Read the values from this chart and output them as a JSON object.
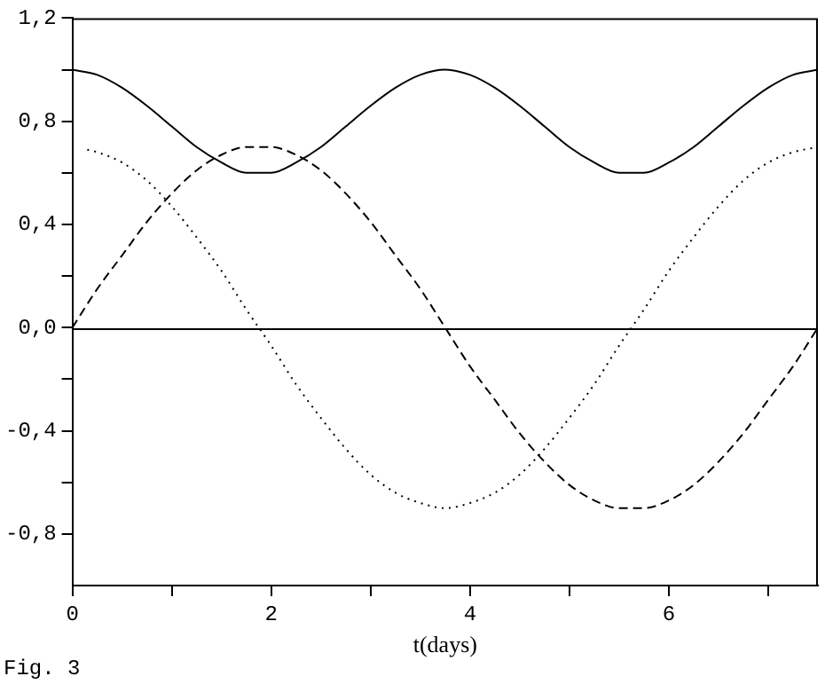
{
  "chart_data": {
    "type": "line",
    "xlabel": "t(days)",
    "annotations": [
      "Fig. 3"
    ],
    "xlim": [
      0,
      7.5
    ],
    "ylim": [
      -1,
      1.2
    ],
    "xticks": [
      0,
      {
        "value": 1,
        "label": null
      },
      2,
      {
        "value": 3,
        "label": null
      },
      4,
      {
        "value": 5,
        "label": null
      },
      6,
      {
        "value": 7,
        "label": null
      }
    ],
    "yticks": [
      {
        "value": -0.8,
        "label": "-0,8"
      },
      {
        "value": -0.6,
        "label": null
      },
      {
        "value": -0.4,
        "label": "-0,4"
      },
      {
        "value": -0.2,
        "label": null
      },
      {
        "value": 0,
        "label": "0,0"
      },
      {
        "value": 0.2,
        "label": null
      },
      {
        "value": 0.4,
        "label": "0,4"
      },
      {
        "value": 0.6,
        "label": null
      },
      {
        "value": 0.8,
        "label": "0,8"
      },
      {
        "value": 1,
        "label": null
      },
      {
        "value": 1.2,
        "label": "1,2"
      }
    ],
    "grid": false,
    "legend": false,
    "marker": "none",
    "ref_lines": [
      {
        "axis": "y",
        "value": 0,
        "color": "#000000"
      }
    ],
    "series": [
      {
        "color": "#000000",
        "line_style": "solid",
        "x": [
          0,
          0.25,
          0.5,
          0.75,
          1,
          1.25,
          1.5,
          1.75,
          2,
          2.25,
          2.5,
          2.75,
          3,
          3.25,
          3.5,
          3.75,
          4,
          4.25,
          4.5,
          4.75,
          5,
          5.25,
          5.5,
          5.75,
          6,
          6.25,
          6.5,
          6.75,
          7,
          7.25,
          7.5
        ],
        "values": [
          1.0,
          0.98,
          0.93,
          0.86,
          0.78,
          0.7,
          0.64,
          0.6,
          0.6,
          0.64,
          0.7,
          0.78,
          0.86,
          0.93,
          0.98,
          1.0,
          0.98,
          0.93,
          0.86,
          0.78,
          0.7,
          0.64,
          0.6,
          0.6,
          0.64,
          0.7,
          0.78,
          0.86,
          0.93,
          0.98,
          1.0
        ]
      },
      {
        "color": "#000000",
        "line_style": "dashed",
        "x": [
          0,
          0.25,
          0.5,
          0.75,
          1,
          1.25,
          1.5,
          1.75,
          2,
          2.25,
          2.5,
          2.75,
          3,
          3.25,
          3.5,
          3.75,
          4,
          4.25,
          4.5,
          4.75,
          5,
          5.25,
          5.5,
          5.75,
          6,
          6.25,
          6.5,
          6.75,
          7,
          7.25,
          7.5
        ],
        "values": [
          0,
          0.15,
          0.28,
          0.41,
          0.52,
          0.61,
          0.67,
          0.7,
          0.7,
          0.67,
          0.61,
          0.52,
          0.41,
          0.28,
          0.15,
          0,
          -0.15,
          -0.28,
          -0.41,
          -0.52,
          -0.61,
          -0.67,
          -0.7,
          -0.7,
          -0.67,
          -0.61,
          -0.52,
          -0.41,
          -0.28,
          -0.15,
          0
        ]
      },
      {
        "color": "#000000",
        "line_style": "dotted",
        "x": [
          0.15,
          0.25,
          0.5,
          0.75,
          1,
          1.25,
          1.5,
          1.75,
          2,
          2.25,
          2.5,
          2.75,
          3,
          3.25,
          3.5,
          3.75,
          4,
          4.25,
          4.5,
          4.75,
          5,
          5.25,
          5.5,
          5.75,
          6,
          6.25,
          6.5,
          6.75,
          7,
          7.25,
          7.5
        ],
        "values": [
          0.69,
          0.68,
          0.64,
          0.57,
          0.47,
          0.35,
          0.22,
          0.07,
          -0.07,
          -0.22,
          -0.35,
          -0.47,
          -0.57,
          -0.64,
          -0.68,
          -0.7,
          -0.68,
          -0.64,
          -0.57,
          -0.47,
          -0.35,
          -0.22,
          -0.07,
          0.07,
          0.22,
          0.35,
          0.47,
          0.57,
          0.64,
          0.68,
          0.7
        ]
      }
    ]
  }
}
